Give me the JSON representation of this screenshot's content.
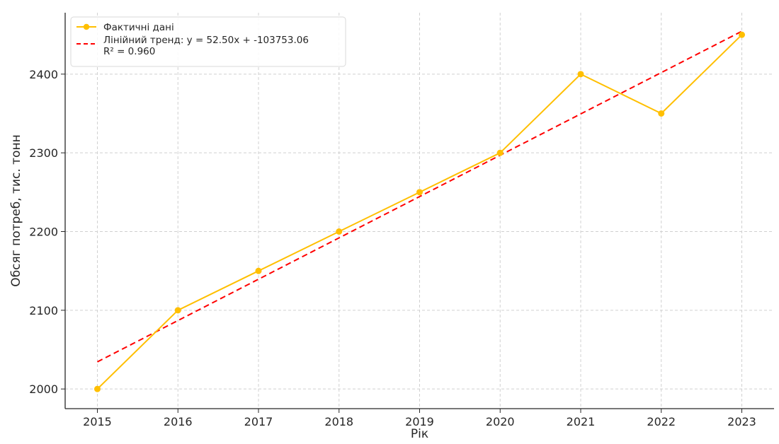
{
  "chart_data": {
    "type": "line",
    "title": "",
    "xlabel": "Рік",
    "ylabel": "Обсяг потреб, тис. тонн",
    "x": [
      2015,
      2016,
      2017,
      2018,
      2019,
      2020,
      2021,
      2022,
      2023
    ],
    "xlim": [
      2014.6,
      2023.4
    ],
    "ylim": [
      1975,
      2478
    ],
    "yticks": [
      2000,
      2100,
      2200,
      2300,
      2400
    ],
    "grid": true,
    "legend_position": "top-left",
    "series": [
      {
        "name": "Фактичні дані",
        "style": "solid",
        "marker": "circle",
        "color": "#FFBF00",
        "values": [
          2000,
          2100,
          2150,
          2200,
          2250,
          2300,
          2400,
          2350,
          2450
        ]
      },
      {
        "name": "Лінійний тренд: y = 52.50x + -103753.06\nR² = 0.960",
        "style": "dashed",
        "marker": "none",
        "color": "#FF0000",
        "values": [
          2034.44,
          2086.94,
          2139.44,
          2191.94,
          2244.44,
          2296.94,
          2349.44,
          2401.94,
          2454.44
        ]
      }
    ]
  }
}
